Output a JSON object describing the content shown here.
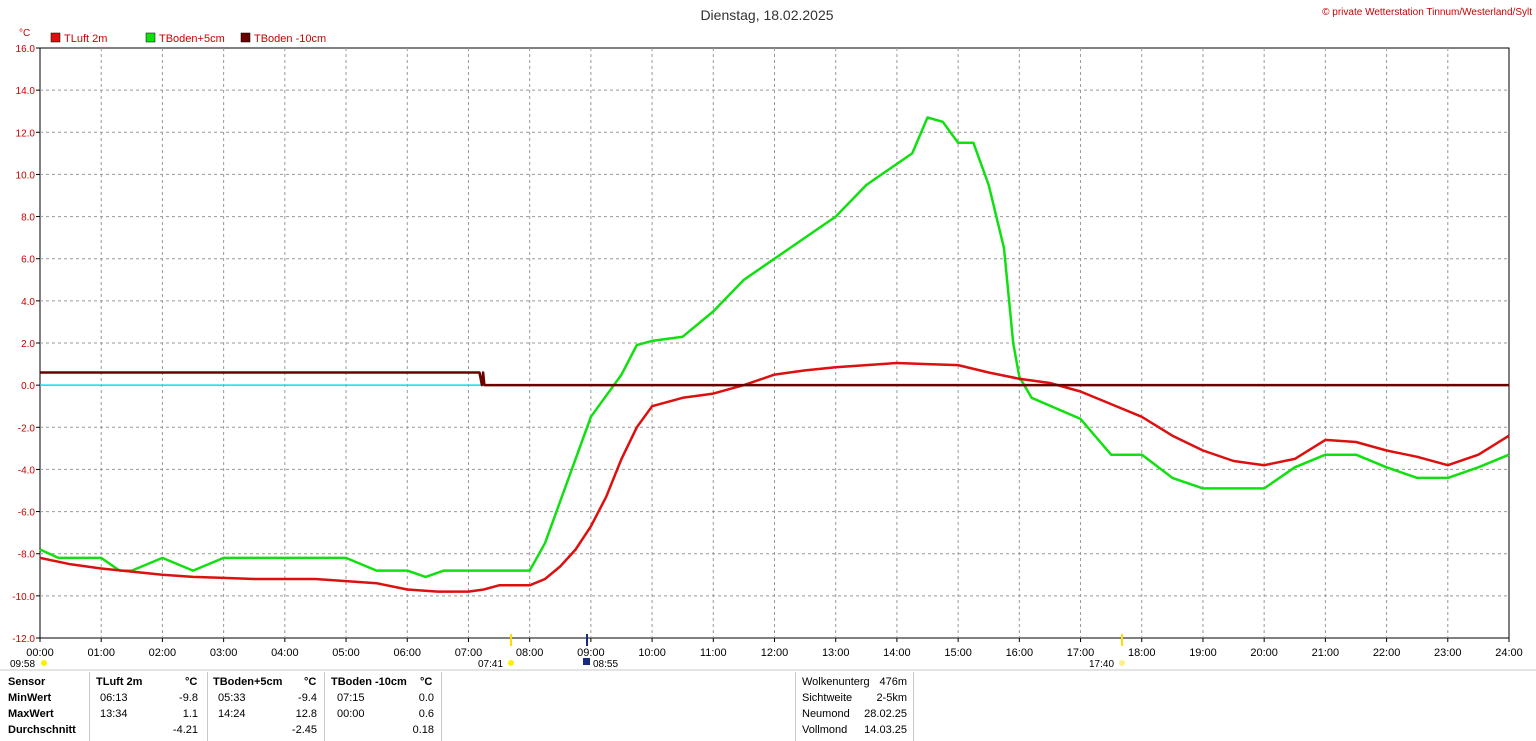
{
  "header": {
    "title": "Dienstag, 18.02.2025",
    "copyright": "© private Wetterstation Tinnum/Westerland/Sylt",
    "unit": "°C"
  },
  "colors": {
    "tluft": "#dd1010",
    "tboden5": "#10e010",
    "tboden10": "#6a0000",
    "zero_line": "#00e5ee",
    "grid": "#999999",
    "axis_text": "#cc0000"
  },
  "chart_data": {
    "type": "line",
    "xlabel": "",
    "ylabel": "°C",
    "ylim": [
      -12,
      16
    ],
    "xlim": [
      0,
      24
    ],
    "y_ticks": [
      "16.0",
      "14.0",
      "12.0",
      "10.0",
      "8.0",
      "6.0",
      "4.0",
      "2.0",
      "0.0",
      "-2.0",
      "-4.0",
      "-6.0",
      "-8.0",
      "-10.0",
      "-12.0"
    ],
    "x_ticks": [
      "00:00",
      "01:00",
      "02:00",
      "03:00",
      "04:00",
      "05:00",
      "06:00",
      "07:00",
      "08:00",
      "09:00",
      "10:00",
      "11:00",
      "12:00",
      "13:00",
      "14:00",
      "15:00",
      "16:00",
      "17:00",
      "18:00",
      "19:00",
      "20:00",
      "21:00",
      "22:00",
      "23:00",
      "24:00"
    ],
    "grid": true,
    "legend_position": "top-left",
    "series": [
      {
        "name": "TLuft 2m",
        "color": "#dd1010",
        "x": [
          0,
          0.5,
          1,
          1.5,
          2,
          2.5,
          3,
          3.5,
          4,
          4.5,
          5,
          5.5,
          6,
          6.5,
          7,
          7.25,
          7.5,
          8,
          8.25,
          8.5,
          8.75,
          9,
          9.25,
          9.5,
          9.75,
          10,
          10.5,
          11,
          11.5,
          12,
          12.5,
          13,
          13.5,
          14,
          14.5,
          15,
          15.5,
          16,
          16.5,
          17,
          17.5,
          18,
          18.5,
          19,
          19.5,
          20,
          20.5,
          21,
          21.5,
          22,
          22.5,
          23,
          23.5,
          24
        ],
        "y": [
          -8.2,
          -8.5,
          -8.7,
          -8.85,
          -9.0,
          -9.1,
          -9.15,
          -9.2,
          -9.2,
          -9.2,
          -9.3,
          -9.4,
          -9.7,
          -9.8,
          -9.8,
          -9.7,
          -9.5,
          -9.5,
          -9.2,
          -8.6,
          -7.8,
          -6.7,
          -5.3,
          -3.5,
          -2.0,
          -1.0,
          -0.6,
          -0.4,
          0.0,
          0.5,
          0.7,
          0.85,
          0.95,
          1.05,
          1.0,
          0.95,
          0.6,
          0.3,
          0.1,
          -0.3,
          -0.9,
          -1.5,
          -2.4,
          -3.1,
          -3.6,
          -3.8,
          -3.5,
          -2.6,
          -2.7,
          -3.1,
          -3.4,
          -3.8,
          -3.3,
          -2.4
        ]
      },
      {
        "name": "TBoden+5cm",
        "color": "#10e010",
        "x": [
          0,
          0.3,
          0.5,
          1,
          1.3,
          1.5,
          2,
          2.5,
          3,
          3.5,
          4,
          4.5,
          5,
          5.5,
          6,
          6.3,
          6.6,
          7,
          7.3,
          8,
          8.25,
          8.5,
          8.75,
          9,
          9.25,
          9.5,
          9.75,
          10,
          10.5,
          11,
          11.5,
          12,
          12.5,
          13,
          13.5,
          14,
          14.25,
          14.5,
          14.75,
          15,
          15.25,
          15.5,
          15.75,
          15.9,
          16.0,
          16.2,
          17,
          17.5,
          18,
          18.5,
          19,
          19.5,
          20,
          20.5,
          21,
          21.5,
          22,
          22.5,
          23,
          23.5,
          24
        ],
        "y": [
          -7.8,
          -8.2,
          -8.2,
          -8.2,
          -8.8,
          -8.8,
          -8.2,
          -8.8,
          -8.2,
          -8.2,
          -8.2,
          -8.2,
          -8.2,
          -8.8,
          -8.8,
          -9.1,
          -8.8,
          -8.8,
          -8.8,
          -8.8,
          -7.5,
          -5.5,
          -3.5,
          -1.5,
          -0.5,
          0.5,
          1.9,
          2.1,
          2.3,
          3.5,
          5.0,
          6.0,
          7.0,
          8.0,
          9.5,
          10.5,
          11.0,
          12.7,
          12.5,
          11.5,
          11.5,
          9.5,
          6.5,
          2.0,
          0.4,
          -0.6,
          -1.6,
          -3.3,
          -3.3,
          -4.4,
          -4.9,
          -4.9,
          -4.9,
          -3.9,
          -3.3,
          -3.3,
          -3.9,
          -4.4,
          -4.4,
          -3.9,
          -3.3
        ]
      },
      {
        "name": "TBoden -10cm",
        "color": "#6a0000",
        "x": [
          0,
          7.18,
          7.22,
          7.24,
          7.26,
          24
        ],
        "y": [
          0.6,
          0.6,
          0.0,
          0.6,
          0.0,
          0.0
        ]
      }
    ]
  },
  "time_markers": {
    "left": {
      "label": "09:58",
      "icon": "sun-icon"
    },
    "sunrise": {
      "label": "07:41",
      "icon": "sunrise-icon"
    },
    "moon": {
      "label": "08:55",
      "icon": "moon-icon"
    },
    "sunset": {
      "label": "17:40",
      "icon": "sunset-icon"
    }
  },
  "stats_table": {
    "sensor_label": "Sensor",
    "row_labels": [
      "MinWert",
      "MaxWert",
      "Durchschnitt"
    ],
    "columns": [
      {
        "header": "TLuft 2m",
        "unit": "°C",
        "min_time": "06:13",
        "min": "-9.8",
        "max_time": "13:34",
        "max": "1.1",
        "avg": "-4.21"
      },
      {
        "header": "TBoden+5cm",
        "unit": "°C",
        "min_time": "05:33",
        "min": "-9.4",
        "max_time": "14:24",
        "max": "12.8",
        "avg": "-2.45"
      },
      {
        "header": "TBoden -10cm",
        "unit": "°C",
        "min_time": "07:15",
        "min": "0.0",
        "max_time": "00:00",
        "max": "0.6",
        "avg": "0.18"
      }
    ]
  },
  "info_table": {
    "rows": [
      {
        "label": "Wolkenunterg",
        "value": "476m"
      },
      {
        "label": "Sichtweite",
        "value": "2-5km"
      },
      {
        "label": "Neumond",
        "value": "28.02.25"
      },
      {
        "label": "Vollmond",
        "value": "14.03.25"
      }
    ]
  }
}
